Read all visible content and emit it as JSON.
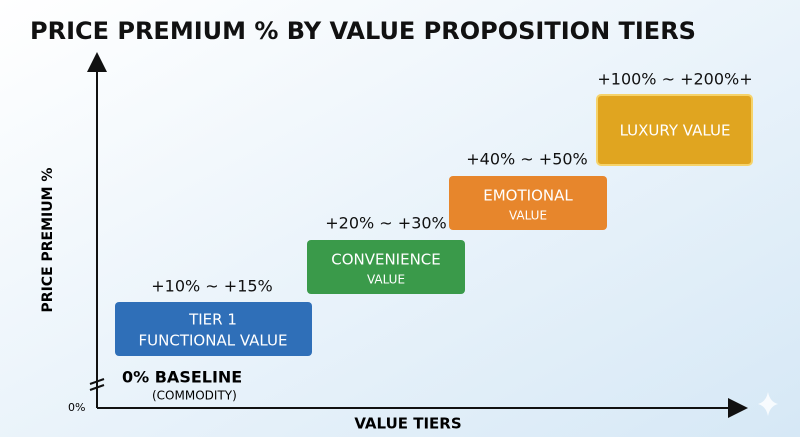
{
  "header": {
    "title": "PRICE PREMIUM % BY VALUE PROPOSITION TIERS"
  },
  "axes": {
    "y_label": "PRICE PREMIUM %",
    "x_label": "VALUE TIERS",
    "origin_label": "0%"
  },
  "baseline": {
    "label": "0% BASELINE",
    "sublabel": "(COMMODITY)"
  },
  "tiers": [
    {
      "lines": [
        "TIER 1",
        "FUNCTIONAL VALUE"
      ],
      "range": "+10% ~ +15%"
    },
    {
      "lines": [
        "CONVENIENCE",
        "VALUE"
      ],
      "range": "+20% ~ +30%"
    },
    {
      "lines": [
        "EMOTIONAL",
        "VALUE"
      ],
      "range": "+40% ~ +50%"
    },
    {
      "lines": [
        "LUXURY VALUE"
      ],
      "range": "+100% ~ +200%+"
    }
  ]
}
